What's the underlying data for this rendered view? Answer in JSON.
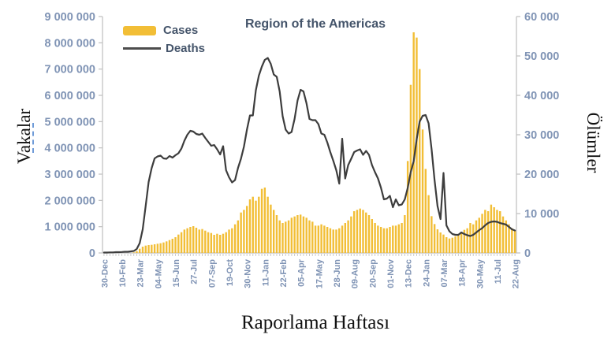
{
  "title": "Region of the Americas",
  "legend": {
    "cases_label": "Cases",
    "deaths_label": "Deaths"
  },
  "axes": {
    "left_title": "Vakalar",
    "right_title": "Ölümler",
    "x_title": "Raporlama Haftası",
    "left_ticks": [
      "9 000 000",
      "8 000 000",
      "7 000 000",
      "6 000 000",
      "5 000 000",
      "4 000 000",
      "3 000 000",
      "2 000 000",
      "1 000 000",
      "0"
    ],
    "right_ticks": [
      "60 000",
      "50 000",
      "40 000",
      "30 000",
      "20 000",
      "10 000",
      "0"
    ],
    "x_ticks": [
      "30-Dec",
      "10-Feb",
      "23-Mar",
      "04-May",
      "15-Jun",
      "27-Jul",
      "07-Sep",
      "19-Oct",
      "30-Nov",
      "11-Jan",
      "22-Feb",
      "05-Apr",
      "17-May",
      "28-Jun",
      "09-Aug",
      "20-Sep",
      "01-Nov",
      "13-Dec",
      "24-Jan",
      "07-Mar",
      "18-Apr",
      "30-May",
      "11-Jul",
      "22-Aug"
    ]
  },
  "colors": {
    "bar": "#F2BE36",
    "line": "#3D3D3D",
    "axis": "#BFBFBF",
    "minor_tick": "#C9C9C9",
    "tick_label": "#8094B5",
    "title_text": "#44546A",
    "artifact_dash": "#6F9BD8"
  },
  "chart_data": {
    "type": "bar",
    "note": "weekly data; x tick labels shown every 6 weeks",
    "n_weeks": 139,
    "x_label_every": 6,
    "ylim_left": [
      0,
      9000000
    ],
    "ylim_right": [
      0,
      60000
    ],
    "grid": false,
    "legend_position": "top-left",
    "series": [
      {
        "name": "Cases",
        "type": "bar",
        "axis": "left",
        "values": [
          0,
          0,
          0,
          500,
          500,
          1000,
          1500,
          2000,
          3000,
          5000,
          20000,
          70000,
          160000,
          240000,
          280000,
          300000,
          310000,
          330000,
          350000,
          370000,
          400000,
          440000,
          490000,
          540000,
          600000,
          700000,
          790000,
          890000,
          940000,
          990000,
          1020000,
          960000,
          890000,
          910000,
          850000,
          790000,
          760000,
          690000,
          730000,
          690000,
          730000,
          790000,
          890000,
          940000,
          1090000,
          1240000,
          1540000,
          1640000,
          1790000,
          2040000,
          2140000,
          1990000,
          2140000,
          2440000,
          2490000,
          2140000,
          1840000,
          1640000,
          1440000,
          1240000,
          1140000,
          1190000,
          1240000,
          1340000,
          1390000,
          1440000,
          1460000,
          1390000,
          1340000,
          1240000,
          1190000,
          1040000,
          1040000,
          1090000,
          1040000,
          990000,
          940000,
          890000,
          890000,
          940000,
          1040000,
          1140000,
          1240000,
          1390000,
          1590000,
          1640000,
          1690000,
          1640000,
          1540000,
          1440000,
          1290000,
          1140000,
          1040000,
          990000,
          940000,
          940000,
          990000,
          1040000,
          1040000,
          1090000,
          1140000,
          1440000,
          3500000,
          6400000,
          8400000,
          8200000,
          7000000,
          4700000,
          3200000,
          2200000,
          1400000,
          1100000,
          900000,
          780000,
          700000,
          600000,
          550000,
          580000,
          630000,
          680000,
          740000,
          880000,
          940000,
          1140000,
          1090000,
          1240000,
          1340000,
          1490000,
          1640000,
          1590000,
          1840000,
          1740000,
          1640000,
          1590000,
          1390000,
          1240000,
          1090000,
          940000,
          840000
        ]
      },
      {
        "name": "Deaths",
        "type": "line",
        "axis": "right",
        "values": [
          100,
          100,
          150,
          150,
          200,
          200,
          250,
          300,
          300,
          400,
          500,
          1000,
          2500,
          6000,
          12000,
          18000,
          21500,
          24000,
          24500,
          24700,
          24000,
          23900,
          24600,
          24200,
          24800,
          25300,
          26500,
          28500,
          30000,
          31000,
          30800,
          30200,
          30000,
          30300,
          29200,
          28200,
          27200,
          27400,
          26300,
          25000,
          27100,
          21000,
          19200,
          17900,
          18500,
          21600,
          23900,
          27000,
          31300,
          34900,
          34900,
          41300,
          45000,
          47300,
          49000,
          49500,
          48000,
          45300,
          44700,
          41000,
          34700,
          31300,
          30300,
          30700,
          34000,
          38700,
          41400,
          41000,
          38000,
          34000,
          33700,
          33700,
          32700,
          30300,
          30000,
          28000,
          25600,
          23400,
          21000,
          17600,
          29000,
          18900,
          22300,
          23900,
          25600,
          26000,
          26300,
          24900,
          25900,
          24900,
          22300,
          20500,
          18900,
          16600,
          13600,
          13800,
          14500,
          11600,
          13600,
          12100,
          12300,
          13600,
          16500,
          20500,
          23300,
          28900,
          33300,
          34800,
          35000,
          32900,
          26300,
          18600,
          11900,
          8600,
          20300,
          7000,
          5500,
          4800,
          4600,
          4600,
          5200,
          4800,
          4500,
          4300,
          4600,
          5200,
          5800,
          6300,
          7000,
          7600,
          7900,
          8000,
          7900,
          7600,
          7400,
          7200,
          6600,
          6000,
          5700
        ]
      }
    ]
  }
}
